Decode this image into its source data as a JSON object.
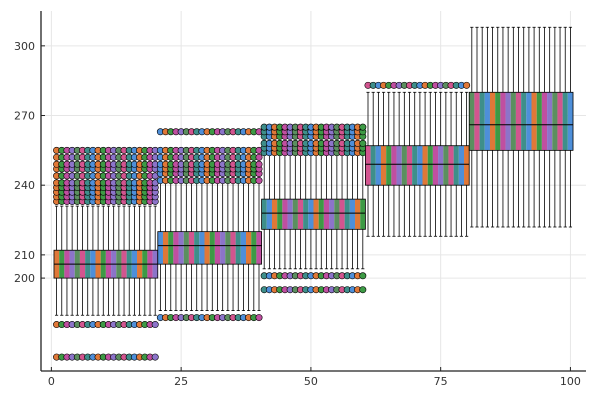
{
  "chart_data": {
    "type": "boxplot",
    "title": "",
    "xlabel": "",
    "ylabel": "",
    "xlim": [
      -2,
      103
    ],
    "ylim": [
      160,
      315
    ],
    "x_ticks": [
      0,
      25,
      50,
      75,
      100
    ],
    "y_ticks": [
      200,
      210,
      240,
      270,
      300
    ],
    "grid": true,
    "legend": "none",
    "palette": [
      "#4e8fd9",
      "#e07838",
      "#3d9a45",
      "#c04fa0",
      "#8c74c9",
      "#5b8f5f",
      "#d2558f",
      "#3e8f8a"
    ],
    "groups": [
      {
        "x_range": [
          1,
          20
        ],
        "q1": 200,
        "median": 206,
        "q3": 212,
        "whisker_low": 184,
        "whisker_high": 231,
        "outliers": [
          166,
          180,
          233,
          235,
          237,
          239,
          241,
          244,
          247,
          249,
          252,
          255
        ]
      },
      {
        "x_range": [
          21,
          40
        ],
        "q1": 206,
        "median": 214,
        "q3": 220,
        "whisker_low": 186,
        "whisker_high": 241,
        "outliers": [
          183,
          242,
          245,
          247,
          249,
          252,
          255,
          263
        ]
      },
      {
        "x_range": [
          41,
          60
        ],
        "q1": 221,
        "median": 228,
        "q3": 234,
        "whisker_low": 204,
        "whisker_high": 253,
        "outliers": [
          195,
          201,
          254,
          256,
          258,
          261,
          263,
          265
        ]
      },
      {
        "x_range": [
          61,
          80
        ],
        "q1": 240,
        "median": 249,
        "q3": 257,
        "whisker_low": 218,
        "whisker_high": 280,
        "outliers": [
          283
        ]
      },
      {
        "x_range": [
          81,
          100
        ],
        "q1": 255,
        "median": 266,
        "q3": 280,
        "whisker_low": 222,
        "whisker_high": 308,
        "outliers": []
      }
    ]
  }
}
